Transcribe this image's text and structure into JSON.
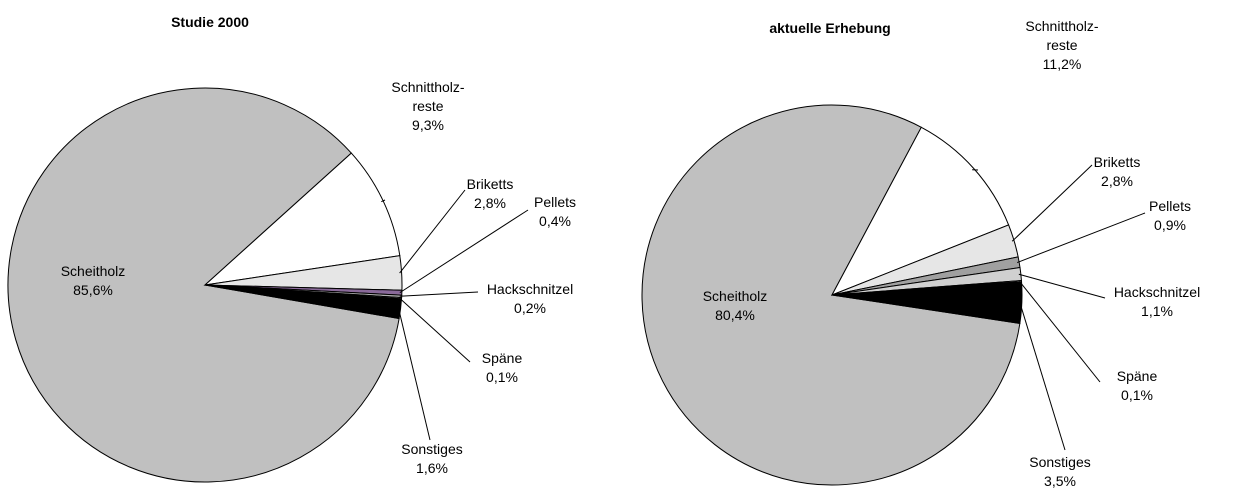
{
  "chart_data": [
    {
      "type": "pie",
      "title": "Studie 2000",
      "categories": [
        "Scheitholz",
        "Schnittholz-reste",
        "Briketts",
        "Pellets",
        "Hackschnitzel",
        "Späne",
        "Sonstiges"
      ],
      "values": [
        85.6,
        9.3,
        2.8,
        0.4,
        0.2,
        0.1,
        1.6
      ],
      "value_labels": [
        "85,6%",
        "9,3%",
        "2,8%",
        "0,4%",
        "0,2%",
        "0,1%",
        "1,6%"
      ],
      "colors": [
        "#c0c0c0",
        "#ffffff",
        "#e6e6e6",
        "#8a6a9a",
        "#b0b0b0",
        "#ffffff",
        "#000000"
      ]
    },
    {
      "type": "pie",
      "title": "aktuelle Erhebung",
      "categories": [
        "Scheitholz",
        "Schnittholz-reste",
        "Briketts",
        "Pellets",
        "Hackschnitzel",
        "Späne",
        "Sonstiges"
      ],
      "values": [
        80.4,
        11.2,
        2.8,
        0.9,
        1.1,
        0.1,
        3.5
      ],
      "value_labels": [
        "80,4%",
        "11,2%",
        "2,8%",
        "0,9%",
        "1,1%",
        "0,1%",
        "3,5%"
      ],
      "colors": [
        "#c0c0c0",
        "#ffffff",
        "#e6e6e6",
        "#a0a0a0",
        "#d0d0d0",
        "#ffffff",
        "#000000"
      ]
    }
  ]
}
